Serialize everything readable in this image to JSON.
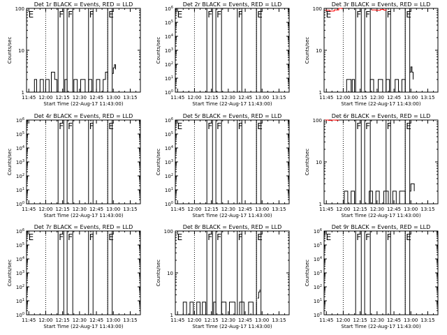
{
  "figure": {
    "xlabel": "Start Time (22-Aug-17 11:43:00)",
    "ylabel": "Counts/sec",
    "x_ticks": [
      "11:45",
      "12:00",
      "12:15",
      "12:30",
      "12:45",
      "13:00",
      "13:15"
    ],
    "colors": {
      "events": "#000000",
      "lld": "#ff0000",
      "axes": "#000000",
      "background": "#ffffff"
    }
  },
  "chart_data": [
    {
      "type": "line",
      "title": "Det 1r BLACK = Events, RED = LLD",
      "xlabel": "Start Time (22-Aug-17 11:43:00)",
      "ylabel": "Counts/sec",
      "xlim": [
        "11:43",
        "13:24"
      ],
      "ylim": [
        1,
        100
      ],
      "yscale": "log",
      "y_ticks": [
        "1",
        "10",
        "100"
      ],
      "x_ticks": [
        "11:45",
        "12:00",
        "12:15",
        "12:30",
        "12:45",
        "13:00",
        "13:15"
      ],
      "vlines_dotted": [
        "11:43",
        "12:00",
        "12:55"
      ],
      "vlines_solid": [
        "12:11",
        "12:16",
        "12:19",
        "12:24",
        "12:38",
        "12:42",
        "12:55",
        "12:59"
      ],
      "flags": [
        {
          "text": "E",
          "x": "11:44"
        },
        {
          "text": "F",
          "x": "12:11"
        },
        {
          "text": "F",
          "x": "12:19"
        },
        {
          "text": "F",
          "x": "12:38"
        },
        {
          "text": "E",
          "x": "12:55"
        }
      ],
      "series": [
        {
          "color": "#000000",
          "values": [
            [
              "11:43",
              1
            ],
            [
              "11:49",
              1
            ],
            [
              "11:50",
              2
            ],
            [
              "11:52",
              1
            ],
            [
              "11:55",
              2
            ],
            [
              "11:58",
              1
            ],
            [
              "12:00",
              2
            ],
            [
              "12:03",
              1
            ],
            [
              "12:05",
              3
            ],
            [
              "12:08",
              2
            ],
            [
              "12:10",
              1
            ],
            [
              "12:17",
              2
            ],
            [
              "12:19",
              1
            ],
            [
              "12:25",
              2
            ],
            [
              "12:28",
              1
            ],
            [
              "12:31",
              2
            ],
            [
              "12:35",
              1
            ],
            [
              "12:38",
              2
            ],
            [
              "12:41",
              1
            ],
            [
              "12:45",
              2
            ],
            [
              "12:48",
              1
            ],
            [
              "12:51",
              2
            ],
            [
              "12:53",
              3
            ],
            [
              "12:55",
              2
            ]
          ]
        },
        {
          "color": "#000000",
          "values": [
            [
              "12:59",
              2.8
            ],
            [
              "13:00",
              3.8
            ],
            [
              "13:01",
              4.5
            ],
            [
              "13:02",
              3.5
            ]
          ]
        }
      ]
    },
    {
      "type": "line",
      "title": "Det 2r BLACK = Events, RED = LLD",
      "xlabel": "Start Time (22-Aug-17 11:43:00)",
      "ylabel": "Counts/sec",
      "xlim": [
        "11:43",
        "13:24"
      ],
      "ylim": [
        1,
        1000000
      ],
      "yscale": "log",
      "y_ticks": [
        "10^0",
        "10^1",
        "10^2",
        "10^3",
        "10^4",
        "10^5",
        "10^6"
      ],
      "x_ticks": [
        "11:45",
        "12:00",
        "12:15",
        "12:30",
        "12:45",
        "13:00",
        "13:15"
      ],
      "vlines_dotted": [
        "11:43",
        "12:00",
        "12:55"
      ],
      "vlines_solid": [
        "12:11",
        "12:16",
        "12:19",
        "12:24",
        "12:38",
        "12:42",
        "12:55",
        "12:59"
      ],
      "flags": [
        {
          "text": "E",
          "x": "11:44"
        },
        {
          "text": "F",
          "x": "12:11"
        },
        {
          "text": "F",
          "x": "12:19"
        },
        {
          "text": "F",
          "x": "12:38"
        },
        {
          "text": "E",
          "x": "12:55"
        }
      ],
      "series": []
    },
    {
      "type": "line",
      "title": "Det 3r BLACK = Events, RED = LLD",
      "xlabel": "Start Time (22-Aug-17 11:43:00)",
      "ylabel": "Counts/sec",
      "xlim": [
        "11:43",
        "13:24"
      ],
      "ylim": [
        1,
        100
      ],
      "yscale": "log",
      "y_ticks": [
        "1",
        "10",
        "100"
      ],
      "x_ticks": [
        "11:45",
        "12:00",
        "12:15",
        "12:30",
        "12:45",
        "13:00",
        "13:15"
      ],
      "vlines_dotted": [
        "11:43",
        "12:00",
        "12:55"
      ],
      "vlines_solid": [
        "12:11",
        "12:16",
        "12:19",
        "12:24",
        "12:38",
        "12:42",
        "12:55",
        "12:59"
      ],
      "flags": [
        {
          "text": "E",
          "x": "11:44"
        },
        {
          "text": "F",
          "x": "12:11"
        },
        {
          "text": "F",
          "x": "12:19"
        },
        {
          "text": "F",
          "x": "12:38"
        },
        {
          "text": "E",
          "x": "12:55"
        }
      ],
      "series": [
        {
          "color": "#ff0000",
          "values": [
            [
              "11:44",
              90
            ],
            [
              "11:48",
              86
            ],
            [
              "11:52",
              92
            ],
            [
              "11:56",
              100
            ],
            [
              "11:59",
              95
            ]
          ]
        },
        {
          "color": "#ff0000",
          "values": [
            [
              "12:25",
              92
            ],
            [
              "12:29",
              90
            ],
            [
              "12:33",
              94
            ],
            [
              "12:36",
              91
            ],
            [
              "12:38",
              95
            ]
          ]
        },
        {
          "color": "#000000",
          "values": [
            [
              "11:43",
              1
            ],
            [
              "12:02",
              1
            ],
            [
              "12:03",
              2
            ],
            [
              "12:07",
              1
            ],
            [
              "12:08",
              2
            ],
            [
              "12:10",
              1
            ],
            [
              "12:24",
              2
            ],
            [
              "12:27",
              1
            ],
            [
              "12:31",
              2
            ],
            [
              "12:35",
              1
            ],
            [
              "12:38",
              2
            ],
            [
              "12:41",
              1
            ],
            [
              "12:46",
              2
            ],
            [
              "12:49",
              1
            ],
            [
              "12:52",
              2
            ],
            [
              "12:55",
              1
            ]
          ]
        },
        {
          "color": "#000000",
          "values": [
            [
              "12:59",
              3
            ],
            [
              "13:00",
              4
            ],
            [
              "13:01",
              3
            ],
            [
              "13:02",
              2
            ]
          ]
        }
      ]
    },
    {
      "type": "line",
      "title": "Det 4r BLACK = Events, RED = LLD",
      "xlabel": "Start Time (22-Aug-17 11:43:00)",
      "ylabel": "Counts/sec",
      "xlim": [
        "11:43",
        "13:24"
      ],
      "ylim": [
        1,
        1000000
      ],
      "yscale": "log",
      "y_ticks": [
        "10^0",
        "10^1",
        "10^2",
        "10^3",
        "10^4",
        "10^5",
        "10^6"
      ],
      "x_ticks": [
        "11:45",
        "12:00",
        "12:15",
        "12:30",
        "12:45",
        "13:00",
        "13:15"
      ],
      "vlines_dotted": [
        "11:43",
        "12:00",
        "12:55"
      ],
      "vlines_solid": [
        "12:11",
        "12:16",
        "12:19",
        "12:24",
        "12:38",
        "12:42",
        "12:55",
        "12:59"
      ],
      "flags": [
        {
          "text": "F",
          "x": "12:11"
        },
        {
          "text": "F",
          "x": "12:19"
        },
        {
          "text": "F",
          "x": "12:38"
        },
        {
          "text": "E",
          "x": "12:55"
        }
      ],
      "series": []
    },
    {
      "type": "line",
      "title": "Det 5r BLACK = Events, RED = LLD",
      "xlabel": "Start Time (22-Aug-17 11:43:00)",
      "ylabel": "Counts/sec",
      "xlim": [
        "11:43",
        "13:24"
      ],
      "ylim": [
        1,
        1000000
      ],
      "yscale": "log",
      "y_ticks": [
        "10^0",
        "10^1",
        "10^2",
        "10^3",
        "10^4",
        "10^5",
        "10^6"
      ],
      "x_ticks": [
        "11:45",
        "12:00",
        "12:15",
        "12:30",
        "12:45",
        "13:00",
        "13:15"
      ],
      "vlines_dotted": [
        "11:43",
        "12:00",
        "12:55"
      ],
      "vlines_solid": [
        "12:11",
        "12:16",
        "12:19",
        "12:24",
        "12:38",
        "12:42",
        "12:55",
        "12:59"
      ],
      "flags": [
        {
          "text": "E",
          "x": "11:44"
        },
        {
          "text": "F",
          "x": "12:11"
        },
        {
          "text": "F",
          "x": "12:19"
        },
        {
          "text": "F",
          "x": "12:38"
        },
        {
          "text": "E",
          "x": "12:55"
        }
      ],
      "series": []
    },
    {
      "type": "line",
      "title": "Det 6r BLACK = Events, RED = LLD",
      "xlabel": "Start Time (22-Aug-17 11:43:00)",
      "ylabel": "Counts/sec",
      "xlim": [
        "11:43",
        "13:24"
      ],
      "ylim": [
        1,
        100
      ],
      "yscale": "log",
      "y_ticks": [
        "1",
        "10",
        "100"
      ],
      "x_ticks": [
        "11:45",
        "12:00",
        "12:15",
        "12:30",
        "12:45",
        "13:00",
        "13:15"
      ],
      "vlines_dotted": [
        "11:43",
        "12:00",
        "12:55"
      ],
      "vlines_solid": [
        "12:11",
        "12:16",
        "12:19",
        "12:24",
        "12:38",
        "12:42",
        "12:55",
        "12:59"
      ],
      "flags": [
        {
          "text": "F",
          "x": "12:11"
        },
        {
          "text": "F",
          "x": "12:19"
        },
        {
          "text": "F",
          "x": "12:38"
        },
        {
          "text": "E",
          "x": "12:55"
        }
      ],
      "series": [
        {
          "color": "#ff0000",
          "values": [
            [
              "11:44",
              100
            ],
            [
              "11:47",
              98
            ],
            [
              "11:50",
              100
            ],
            [
              "11:53",
              99
            ],
            [
              "11:56",
              100
            ]
          ]
        },
        {
          "color": "#000000",
          "values": [
            [
              "11:43",
              1
            ],
            [
              "12:00",
              1
            ],
            [
              "12:01",
              2
            ],
            [
              "12:04",
              1
            ],
            [
              "12:07",
              2
            ],
            [
              "12:10",
              1
            ],
            [
              "12:23",
              2
            ],
            [
              "12:26",
              1
            ],
            [
              "12:29",
              2
            ],
            [
              "12:32",
              1
            ],
            [
              "12:36",
              2
            ],
            [
              "12:40",
              1
            ],
            [
              "12:44",
              2
            ],
            [
              "12:47",
              1
            ],
            [
              "12:50",
              2
            ],
            [
              "12:55",
              1
            ]
          ]
        },
        {
          "color": "#000000",
          "values": [
            [
              "12:59",
              2
            ],
            [
              "13:00",
              3
            ],
            [
              "13:02",
              3
            ],
            [
              "13:03",
              2
            ]
          ]
        }
      ]
    },
    {
      "type": "line",
      "title": "Det 7r BLACK = Events, RED = LLD",
      "xlabel": "Start Time (22-Aug-17 11:43:00)",
      "ylabel": "Counts/sec",
      "xlim": [
        "11:43",
        "13:24"
      ],
      "ylim": [
        1,
        1000000
      ],
      "yscale": "log",
      "y_ticks": [
        "10^0",
        "10^1",
        "10^2",
        "10^3",
        "10^4",
        "10^5",
        "10^6"
      ],
      "x_ticks": [
        "11:45",
        "12:00",
        "12:15",
        "12:30",
        "12:45",
        "13:00",
        "13:15"
      ],
      "vlines_dotted": [
        "11:43",
        "12:00",
        "12:55"
      ],
      "vlines_solid": [
        "12:11",
        "12:16",
        "12:19",
        "12:24",
        "12:38",
        "12:42",
        "12:55",
        "12:59"
      ],
      "flags": [
        {
          "text": "E",
          "x": "11:44"
        },
        {
          "text": "F",
          "x": "12:11"
        },
        {
          "text": "F",
          "x": "12:19"
        },
        {
          "text": "F",
          "x": "12:38"
        },
        {
          "text": "E",
          "x": "12:55"
        }
      ],
      "series": []
    },
    {
      "type": "line",
      "title": "Det 8r BLACK = Events, RED = LLD",
      "xlabel": "Start Time (22-Aug-17 11:43:00)",
      "ylabel": "Counts/sec",
      "xlim": [
        "11:43",
        "13:24"
      ],
      "ylim": [
        1,
        100
      ],
      "yscale": "log",
      "y_ticks": [
        "1",
        "10",
        "100"
      ],
      "x_ticks": [
        "11:45",
        "12:00",
        "12:15",
        "12:30",
        "12:45",
        "13:00",
        "13:15"
      ],
      "vlines_dotted": [
        "11:43",
        "12:00",
        "12:55"
      ],
      "vlines_solid": [
        "12:11",
        "12:16",
        "12:19",
        "12:24",
        "12:38",
        "12:42",
        "12:55",
        "12:59"
      ],
      "flags": [
        {
          "text": "E",
          "x": "11:44"
        },
        {
          "text": "F",
          "x": "12:11"
        },
        {
          "text": "F",
          "x": "12:19"
        },
        {
          "text": "F",
          "x": "12:38"
        },
        {
          "text": "E",
          "x": "12:55"
        }
      ],
      "series": [
        {
          "color": "#000000",
          "values": [
            [
              "11:43",
              1
            ],
            [
              "11:49",
              1
            ],
            [
              "11:50",
              2
            ],
            [
              "11:53",
              1
            ],
            [
              "11:56",
              2
            ],
            [
              "11:59",
              1
            ],
            [
              "12:02",
              2
            ],
            [
              "12:05",
              1
            ],
            [
              "12:07",
              2
            ],
            [
              "12:10",
              1
            ],
            [
              "12:17",
              2
            ],
            [
              "12:19",
              1
            ],
            [
              "12:24",
              2
            ],
            [
              "12:28",
              1
            ],
            [
              "12:31",
              2
            ],
            [
              "12:36",
              1
            ],
            [
              "12:40",
              2
            ],
            [
              "12:44",
              1
            ],
            [
              "12:48",
              2
            ],
            [
              "12:52",
              1
            ],
            [
              "12:55",
              2
            ]
          ]
        },
        {
          "color": "#000000",
          "values": [
            [
              "12:56",
              2.5
            ],
            [
              "12:57",
              3.5
            ],
            [
              "12:58",
              4
            ]
          ]
        }
      ]
    },
    {
      "type": "line",
      "title": "Det 9r BLACK = Events, RED = LLD",
      "xlabel": "Start Time (22-Aug-17 11:43:00)",
      "ylabel": "Counts/sec",
      "xlim": [
        "11:43",
        "13:24"
      ],
      "ylim": [
        1,
        1000000
      ],
      "yscale": "log",
      "y_ticks": [
        "10^0",
        "10^1",
        "10^2",
        "10^3",
        "10^4",
        "10^5",
        "10^6"
      ],
      "x_ticks": [
        "11:45",
        "12:00",
        "12:15",
        "12:30",
        "12:45",
        "13:00",
        "13:15"
      ],
      "vlines_dotted": [
        "11:43",
        "12:00",
        "12:55"
      ],
      "vlines_solid": [
        "12:11",
        "12:16",
        "12:19",
        "12:24",
        "12:38",
        "12:42",
        "12:55",
        "12:59"
      ],
      "flags": [
        {
          "text": "E",
          "x": "11:44"
        },
        {
          "text": "F",
          "x": "12:11"
        },
        {
          "text": "F",
          "x": "12:19"
        },
        {
          "text": "F",
          "x": "12:38"
        },
        {
          "text": "E",
          "x": "12:55"
        }
      ],
      "series": []
    }
  ]
}
